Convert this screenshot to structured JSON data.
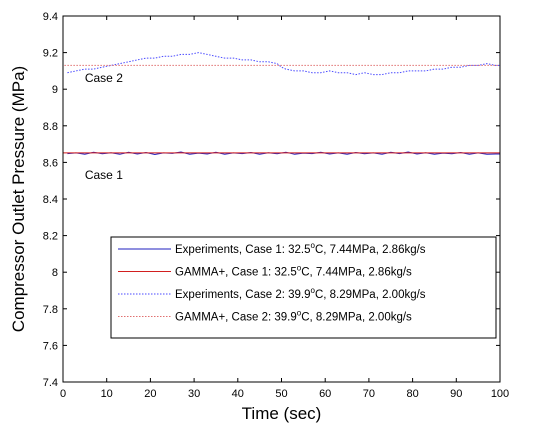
{
  "chart_data": {
    "type": "line",
    "title": "",
    "xlabel": "Time (sec)",
    "ylabel": "Compressor Outlet Pressure (MPa)",
    "xlim": [
      0,
      100
    ],
    "ylim": [
      7.4,
      9.4
    ],
    "xticks": [
      0,
      10,
      20,
      30,
      40,
      50,
      60,
      70,
      80,
      90,
      100
    ],
    "yticks": [
      7.4,
      7.6,
      7.8,
      8.0,
      8.2,
      8.4,
      8.6,
      8.8,
      9.0,
      9.2,
      9.4
    ],
    "xtick_labels": [
      "0",
      "10",
      "20",
      "30",
      "40",
      "50",
      "60",
      "70",
      "80",
      "90",
      "100"
    ],
    "ytick_labels": [
      "7.4",
      "7.6",
      "7.8",
      "8",
      "8.2",
      "8.4",
      "8.6",
      "8.8",
      "9",
      "9.2",
      "9.4"
    ],
    "grid": false,
    "legend_position": "lower-right",
    "annotations": [
      {
        "text": "Case 2",
        "x": 5,
        "y": 9.04
      },
      {
        "text": "Case 1",
        "x": 5,
        "y": 8.51
      }
    ],
    "series": [
      {
        "name": "Experiments, Case 1: 32.5°C, 7.44MPa, 2.86kg/s",
        "color": "#1f1fbf",
        "style": "solid",
        "x": [
          1,
          3,
          5,
          7,
          9,
          11,
          13,
          15,
          17,
          19,
          21,
          23,
          25,
          27,
          29,
          31,
          33,
          35,
          37,
          39,
          41,
          43,
          45,
          47,
          49,
          51,
          53,
          55,
          57,
          59,
          61,
          63,
          65,
          67,
          69,
          71,
          73,
          75,
          77,
          79,
          81,
          83,
          85,
          87,
          89,
          91,
          93,
          95,
          97,
          99,
          100
        ],
        "y": [
          8.648,
          8.652,
          8.645,
          8.655,
          8.647,
          8.653,
          8.644,
          8.656,
          8.646,
          8.654,
          8.643,
          8.652,
          8.649,
          8.657,
          8.645,
          8.651,
          8.646,
          8.655,
          8.644,
          8.652,
          8.648,
          8.654,
          8.645,
          8.653,
          8.647,
          8.656,
          8.644,
          8.651,
          8.648,
          8.655,
          8.646,
          8.652,
          8.644,
          8.654,
          8.647,
          8.652,
          8.645,
          8.656,
          8.648,
          8.657,
          8.646,
          8.653,
          8.644,
          8.651,
          8.647,
          8.654,
          8.645,
          8.652,
          8.644,
          8.646,
          8.646
        ]
      },
      {
        "name": "GAMMA+,      Case 1: 32.5°C, 7.44MPa, 2.86kg/s",
        "color": "#d21f1f",
        "style": "solid",
        "x": [
          0,
          0,
          100
        ],
        "y": [
          7.4,
          8.652,
          8.652
        ]
      },
      {
        "name": "Experiments, Case 2: 39.9°C, 8.29MPa, 2.00kg/s",
        "color": "#4a4aff",
        "style": "dotted",
        "x": [
          1,
          3,
          5,
          7,
          9,
          11,
          13,
          15,
          17,
          19,
          21,
          23,
          25,
          27,
          29,
          31,
          33,
          35,
          37,
          39,
          41,
          43,
          45,
          47,
          49,
          50,
          51,
          53,
          55,
          57,
          59,
          61,
          63,
          65,
          67,
          69,
          71,
          73,
          75,
          77,
          79,
          81,
          83,
          85,
          87,
          89,
          91,
          93,
          95,
          97,
          99,
          100
        ],
        "y": [
          9.09,
          9.1,
          9.11,
          9.11,
          9.12,
          9.13,
          9.14,
          9.15,
          9.16,
          9.17,
          9.17,
          9.18,
          9.18,
          9.19,
          9.19,
          9.2,
          9.19,
          9.18,
          9.17,
          9.17,
          9.16,
          9.16,
          9.15,
          9.15,
          9.14,
          9.12,
          9.11,
          9.1,
          9.1,
          9.09,
          9.09,
          9.1,
          9.09,
          9.09,
          9.08,
          9.09,
          9.08,
          9.08,
          9.09,
          9.09,
          9.1,
          9.1,
          9.1,
          9.11,
          9.11,
          9.12,
          9.12,
          9.13,
          9.13,
          9.14,
          9.13,
          9.13
        ]
      },
      {
        "name": "GAMMA+,      Case 2: 39.9°C, 8.29MPa, 2.00kg/s",
        "color": "#e07070",
        "style": "dotted",
        "x": [
          0,
          0,
          100
        ],
        "y": [
          7.4,
          9.13,
          9.13
        ]
      }
    ]
  }
}
